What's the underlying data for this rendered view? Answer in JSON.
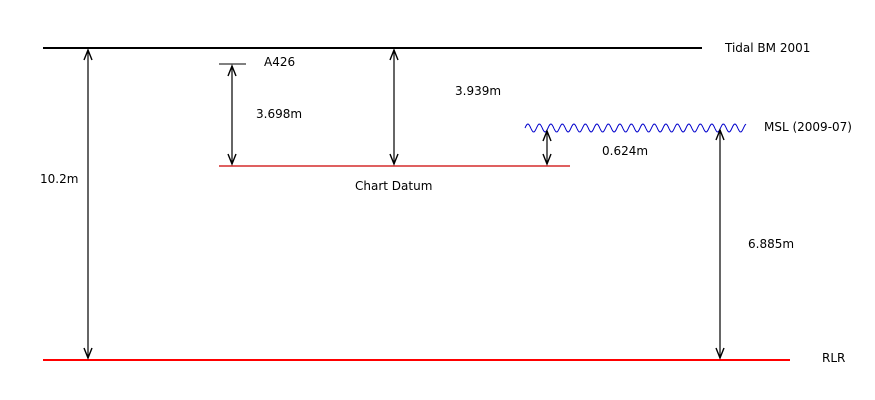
{
  "datums": {
    "tidal_bm": {
      "label": "Tidal BM 2001",
      "color": "#000000"
    },
    "a426": {
      "label": "A426",
      "color": "#000000"
    },
    "chart_datum": {
      "label": "Chart Datum",
      "color": "#cc0000"
    },
    "msl": {
      "label": "MSL (2009-07)",
      "color": "#0000cc"
    },
    "rlr": {
      "label": "RLR",
      "color": "#ff0000"
    }
  },
  "measurements": {
    "bm_to_rlr": "10.2m",
    "a426_to_chart_datum": "3.698m",
    "bm_to_chart_datum": "3.939m",
    "chart_datum_to_msl": "0.624m",
    "msl_to_rlr": "6.885m"
  }
}
